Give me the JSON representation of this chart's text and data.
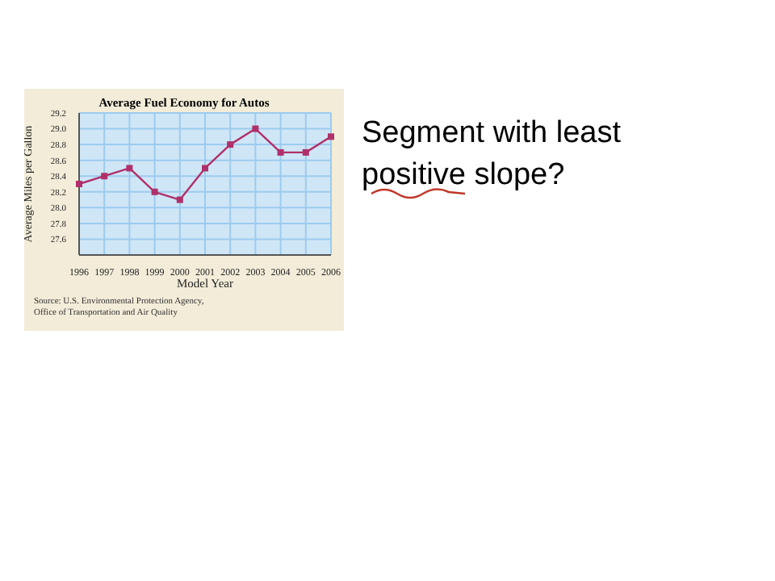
{
  "chart_data": {
    "type": "line",
    "title": "Average Fuel Economy for Autos",
    "xlabel": "Model Year",
    "ylabel": "Average Miles per Gallon",
    "categories": [
      "1996",
      "1997",
      "1998",
      "1999",
      "2000",
      "2001",
      "2002",
      "2003",
      "2004",
      "2005",
      "2006"
    ],
    "series": [
      {
        "color": "#b0306a",
        "values": [
          28.3,
          28.4,
          28.5,
          28.2,
          28.1,
          28.5,
          28.8,
          29.0,
          28.7,
          28.7,
          28.9
        ]
      }
    ],
    "ylim": [
      27.4,
      29.2
    ],
    "yticks": [
      27.6,
      27.8,
      {
        "value": 28.0,
        "label": "28.0"
      },
      28.2,
      28.4,
      28.6,
      28.8,
      {
        "value": 29.0,
        "label": "29.0"
      },
      29.2
    ],
    "grid": true,
    "marker": "square",
    "line_style": "solid",
    "annotations": [
      "Source: U.S. Environmental Protection Agency, Office of Transportation and Air Quality",
      "Segment with least positive slope?"
    ]
  }
}
